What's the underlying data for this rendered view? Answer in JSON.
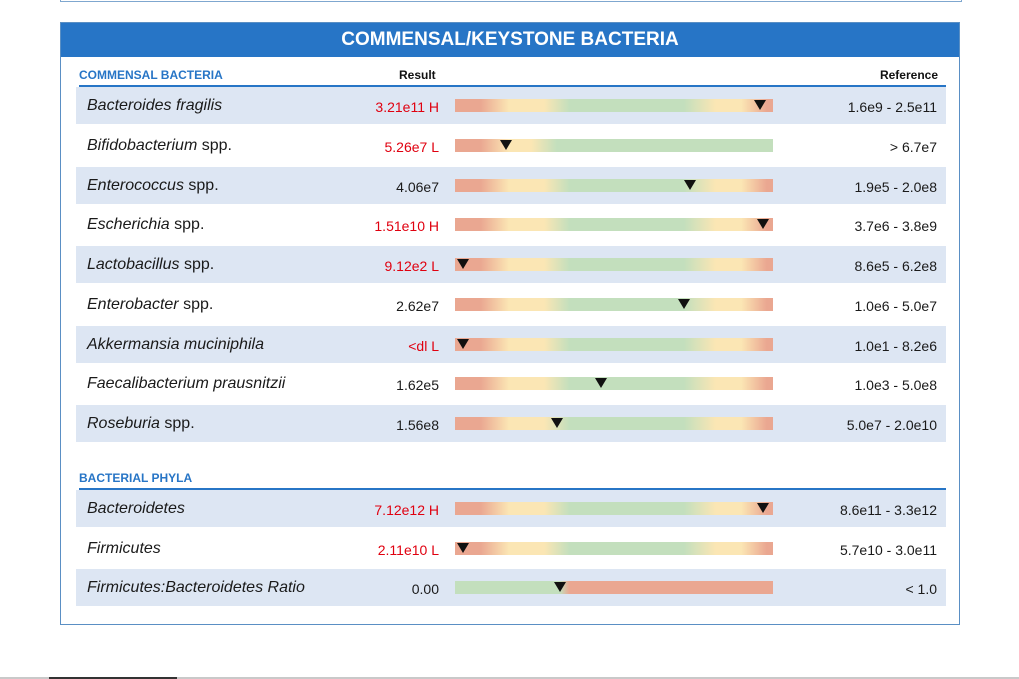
{
  "title": "COMMENSAL/KEYSTONE BACTERIA",
  "colors": {
    "red": "#eaa791",
    "yellow": "#fbe6b4",
    "green": "#c3dfbd",
    "accent": "#2775c6",
    "flag": "#e0000f"
  },
  "sections": [
    {
      "title": "COMMENSAL BACTERIA",
      "col_result": "Result",
      "col_reference": "Reference",
      "rows": [
        {
          "name": "Bacteroides fragilis",
          "suffix": "",
          "result": "3.21e11 H",
          "flag": true,
          "reference": "1.6e9 - 2.5e11",
          "marker": 0.96,
          "bar": "r2g2r"
        },
        {
          "name": "Bifidobacterium",
          "suffix": "spp.",
          "result": "5.26e7 L",
          "flag": true,
          "reference": "> 6.7e7",
          "marker": 0.16,
          "bar": "r2g"
        },
        {
          "name": "Enterococcus",
          "suffix": "spp.",
          "result": "4.06e7",
          "flag": false,
          "reference": "1.9e5 - 2.0e8",
          "marker": 0.74,
          "bar": "r2g2r"
        },
        {
          "name": "Escherichia",
          "suffix": "spp.",
          "result": "1.51e10 H",
          "flag": true,
          "reference": "3.7e6 - 3.8e9",
          "marker": 0.97,
          "bar": "r2g2r"
        },
        {
          "name": "Lactobacillus",
          "suffix": "spp.",
          "result": "9.12e2 L",
          "flag": true,
          "reference": "8.6e5 - 6.2e8",
          "marker": 0.025,
          "bar": "r2g2r"
        },
        {
          "name": "Enterobacter",
          "suffix": "spp.",
          "result": "2.62e7",
          "flag": false,
          "reference": "1.0e6 - 5.0e7",
          "marker": 0.72,
          "bar": "r2g2r"
        },
        {
          "name": "Akkermansia muciniphila",
          "suffix": "",
          "result": "<dl L",
          "flag": true,
          "reference": "1.0e1 - 8.2e6",
          "marker": 0.025,
          "bar": "r2g2r"
        },
        {
          "name": "Faecalibacterium prausnitzii",
          "suffix": "",
          "result": "1.62e5",
          "flag": false,
          "reference": "1.0e3 - 5.0e8",
          "marker": 0.46,
          "bar": "r2g2r"
        },
        {
          "name": "Roseburia",
          "suffix": "spp.",
          "result": "1.56e8",
          "flag": false,
          "reference": "5.0e7 - 2.0e10",
          "marker": 0.32,
          "bar": "r2g2r"
        }
      ]
    },
    {
      "title": "BACTERIAL PHYLA",
      "rows": [
        {
          "name": "Bacteroidetes",
          "suffix": "",
          "result": "7.12e12 H",
          "flag": true,
          "reference": "8.6e11 - 3.3e12",
          "marker": 0.97,
          "bar": "r2g2r"
        },
        {
          "name": "Firmicutes",
          "suffix": "",
          "result": "2.11e10 L",
          "flag": true,
          "reference": "5.7e10 - 3.0e11",
          "marker": 0.025,
          "bar": "r2g2r"
        },
        {
          "name": "Firmicutes:Bacteroidetes Ratio",
          "suffix": "",
          "result": "0.00",
          "flag": false,
          "reference": "< 1.0",
          "marker": 0.33,
          "bar": "g2r"
        }
      ]
    }
  ]
}
